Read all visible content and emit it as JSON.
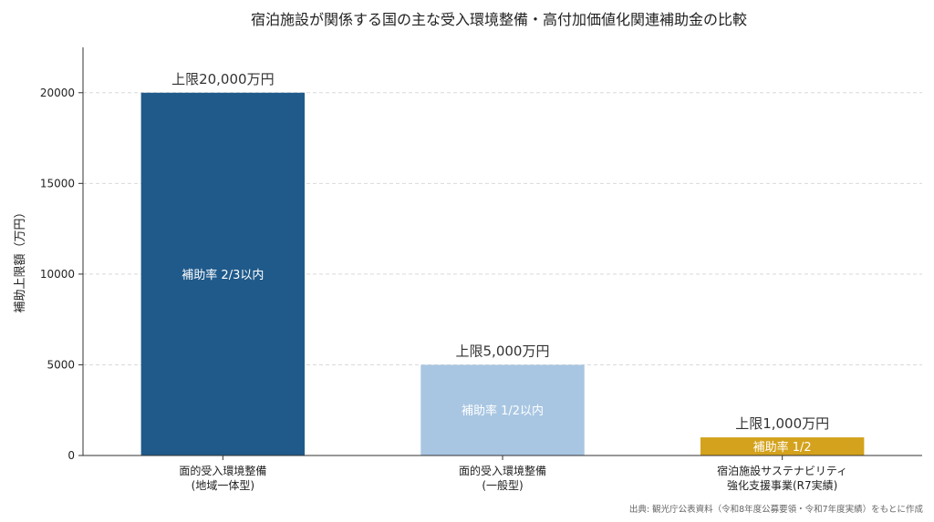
{
  "chart_data": {
    "type": "bar",
    "title": "宿泊施設が関係する国の主な受入環境整備・高付加価値化関連補助金の比較",
    "ylabel": "補助上限額（万円）",
    "ylim": [
      0,
      22500
    ],
    "yticks": [
      0,
      5000,
      10000,
      15000,
      20000
    ],
    "grid": true,
    "categories": [
      [
        "面的受入環境整備",
        "(地域一体型)"
      ],
      [
        "面的受入環境整備",
        "(一般型)"
      ],
      [
        "宿泊施設サステナビリティ",
        "強化支援事業(R7実績)"
      ]
    ],
    "values": [
      20000,
      5000,
      1000
    ],
    "colors": [
      "#1f5a8b",
      "#a8c6e2",
      "#d4a21c"
    ],
    "cap_labels": [
      "上限20,000万円",
      "上限5,000万円",
      "上限1,000万円"
    ],
    "rate_labels": [
      "補助率 2/3以内",
      "補助率 1/2以内",
      "補助率 1/2"
    ]
  },
  "source_note": "出典: 観光庁公表資料（令和8年度公募要領・令和7年度実績）をもとに作成"
}
